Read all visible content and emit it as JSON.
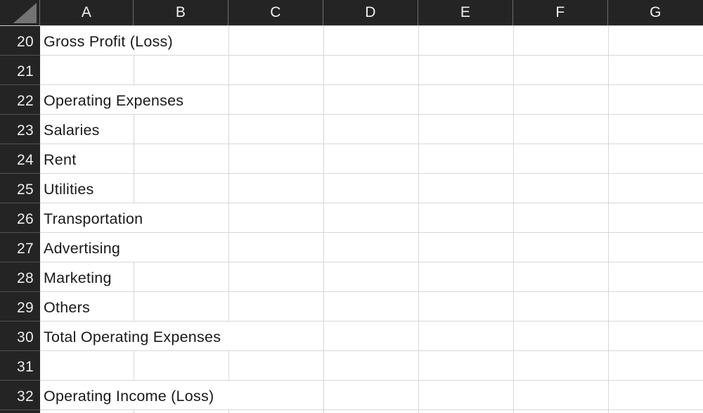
{
  "app": "spreadsheet-grid",
  "columns": [
    "A",
    "B",
    "C",
    "D",
    "E",
    "F",
    "G"
  ],
  "select_all": "select-all-corner",
  "rows": [
    {
      "num": "20",
      "label": "Gross Profit (Loss)"
    },
    {
      "num": "21",
      "label": ""
    },
    {
      "num": "22",
      "label": "Operating Expenses"
    },
    {
      "num": "23",
      "label": "Salaries"
    },
    {
      "num": "24",
      "label": "Rent"
    },
    {
      "num": "25",
      "label": "Utilities"
    },
    {
      "num": "26",
      "label": "Transportation"
    },
    {
      "num": "27",
      "label": "Advertising"
    },
    {
      "num": "28",
      "label": "Marketing"
    },
    {
      "num": "29",
      "label": "Others"
    },
    {
      "num": "30",
      "label": "Total Operating Expenses"
    },
    {
      "num": "31",
      "label": ""
    },
    {
      "num": "32",
      "label": "Operating Income (Loss)"
    }
  ],
  "colors": {
    "header_bg": "#242424",
    "header_text": "#f1f1f1",
    "header_separator": "#6e6e6e",
    "row_separator": "#525252",
    "gridline": "#d7d7d7",
    "cell_bg": "#ffffff",
    "cell_text": "#191919",
    "select_all_triangle": "#737373"
  }
}
